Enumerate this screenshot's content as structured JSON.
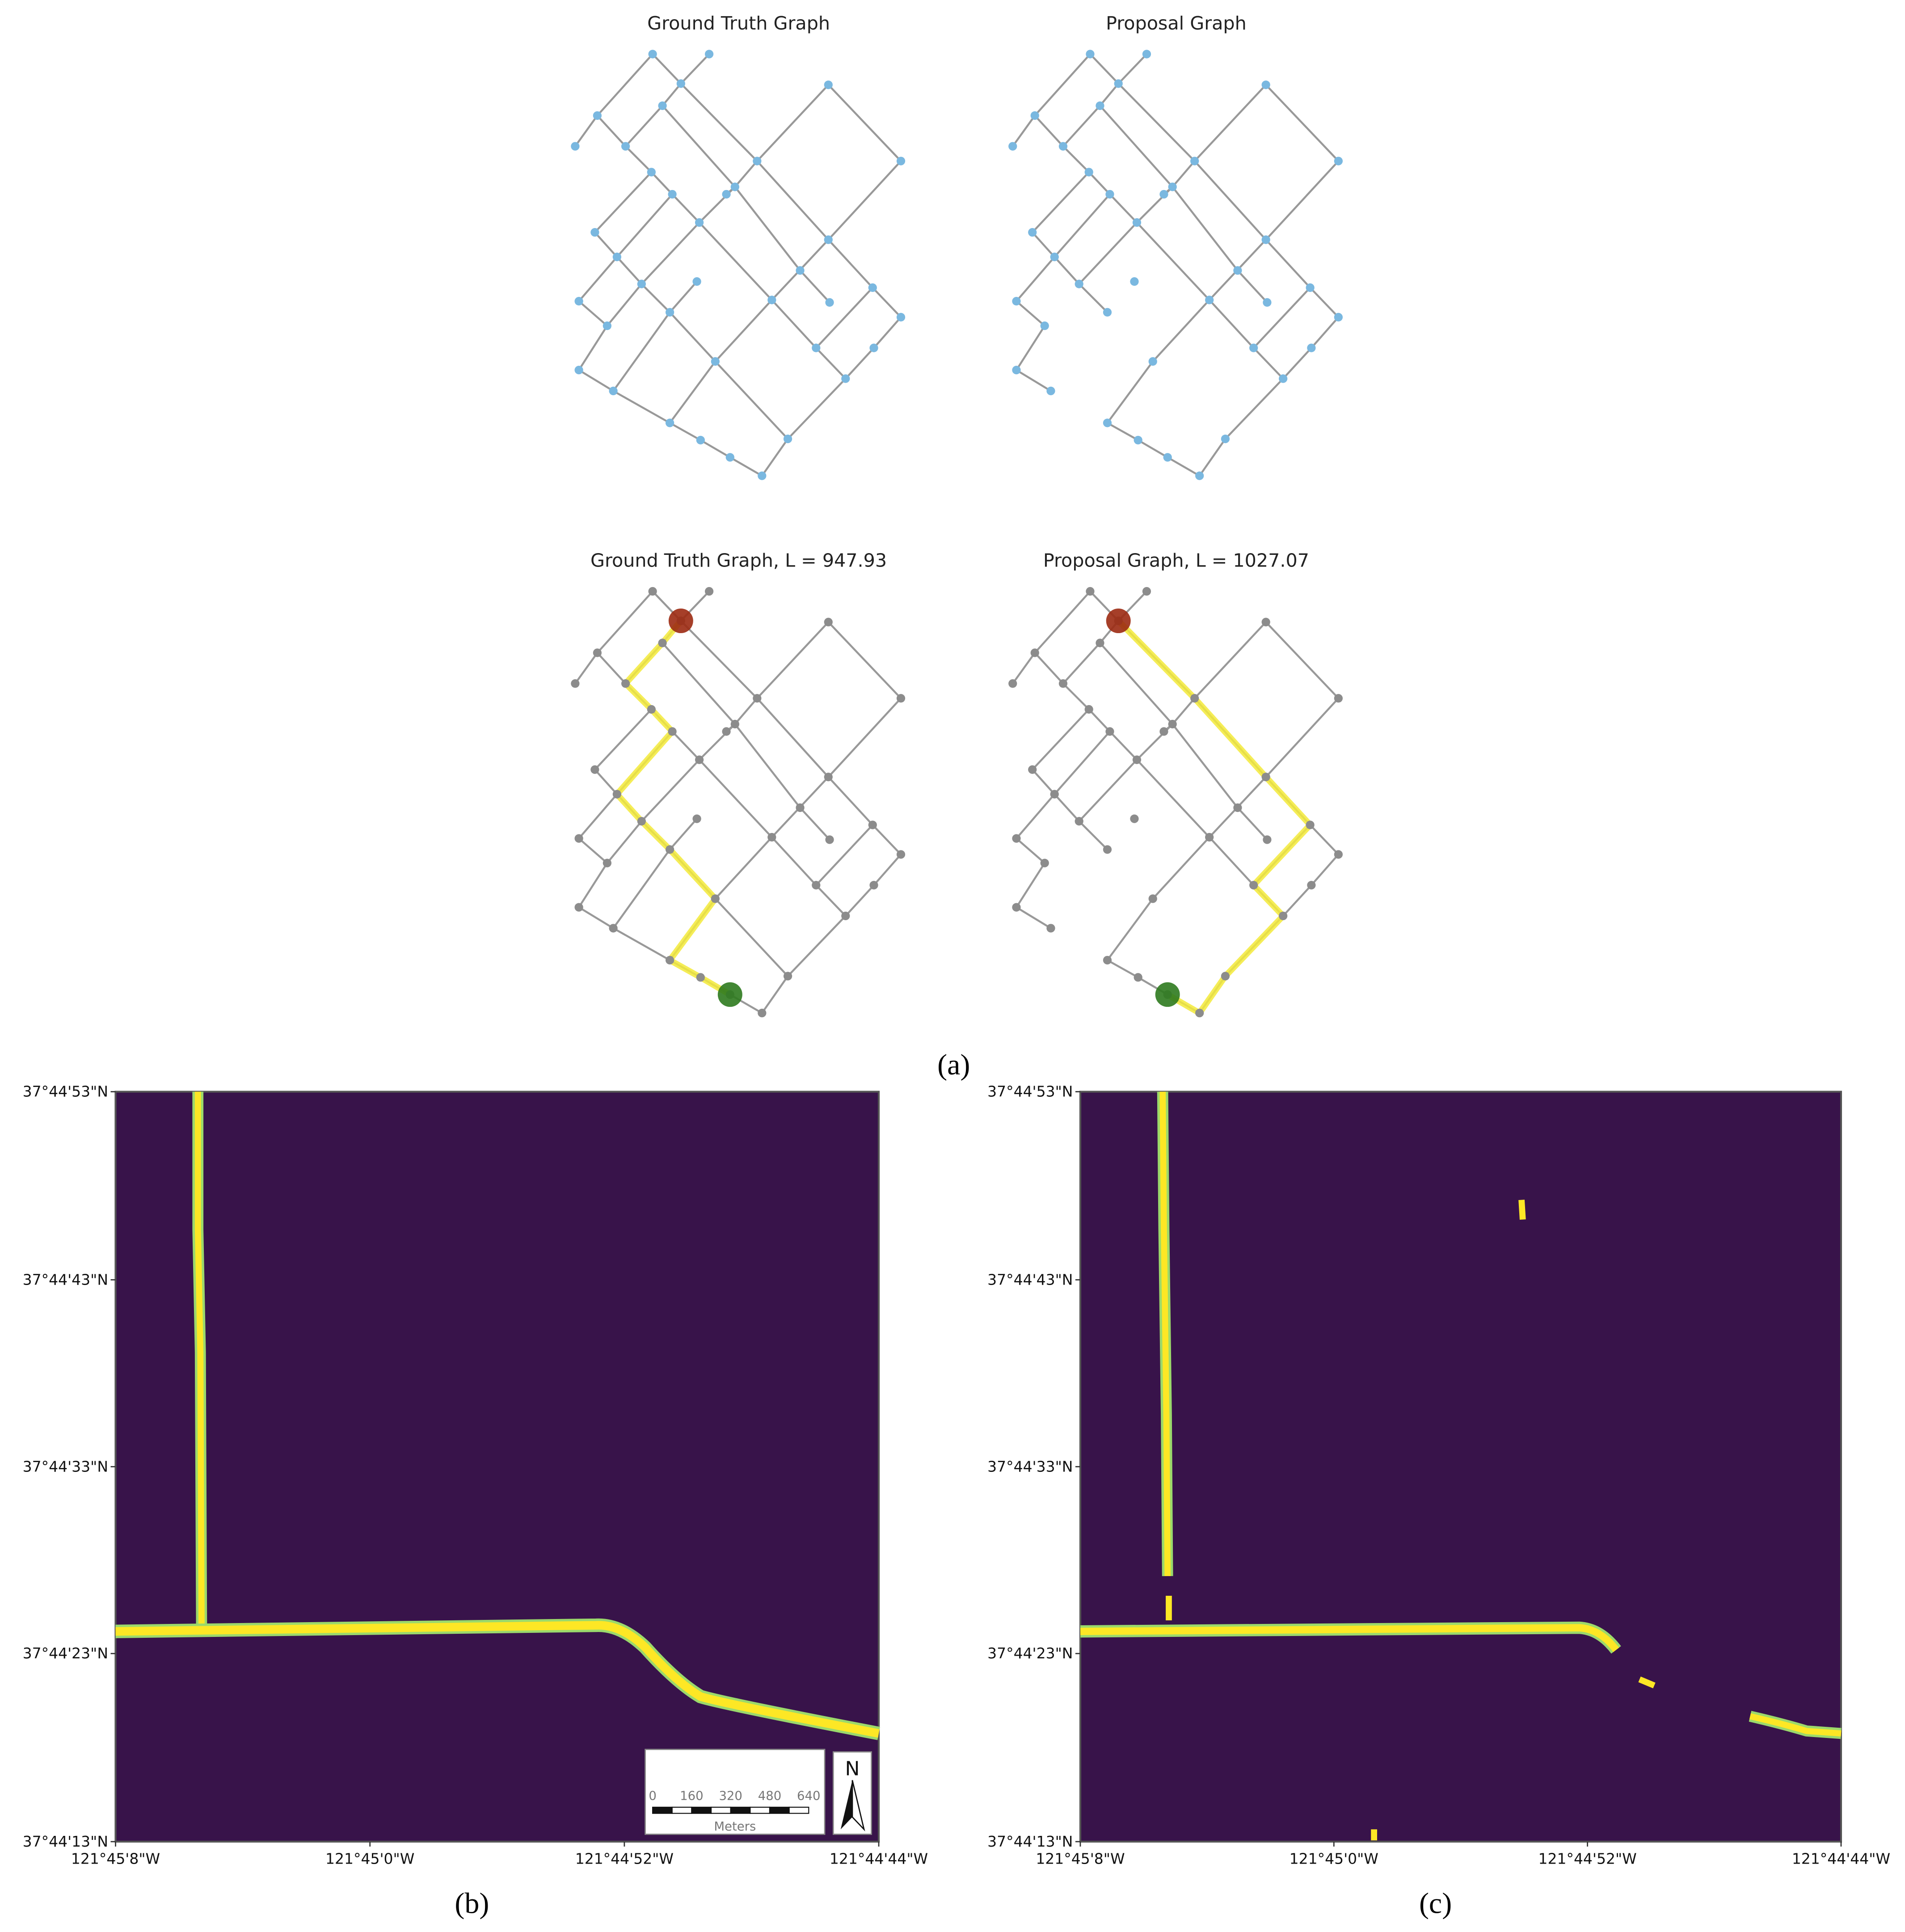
{
  "panel_a": {
    "label": "(a)",
    "titles": [
      "Ground Truth Graph",
      "Proposal Graph",
      "Ground Truth Graph, L = 947.93",
      "Proposal Graph, L = 1027.07"
    ]
  },
  "panel_b": {
    "label": "(b)",
    "yticks": [
      "37°44'53\"N",
      "37°44'43\"N",
      "37°44'33\"N",
      "37°44'23\"N",
      "37°44'13\"N"
    ],
    "xticks": [
      "121°45'8\"W",
      "121°45'0\"W",
      "121°44'52\"W",
      "121°44'44\"W"
    ],
    "scale_bar": {
      "ticks": [
        0,
        160,
        320,
        480,
        640
      ],
      "unit": "Meters"
    },
    "north": "N"
  },
  "panel_c": {
    "label": "(c)",
    "yticks": [
      "37°44'53\"N",
      "37°44'43\"N",
      "37°44'33\"N",
      "37°44'23\"N",
      "37°44'13\"N"
    ],
    "xticks": [
      "121°45'8\"W",
      "121°45'0\"W",
      "121°44'52\"W",
      "121°44'44\"W"
    ]
  }
}
